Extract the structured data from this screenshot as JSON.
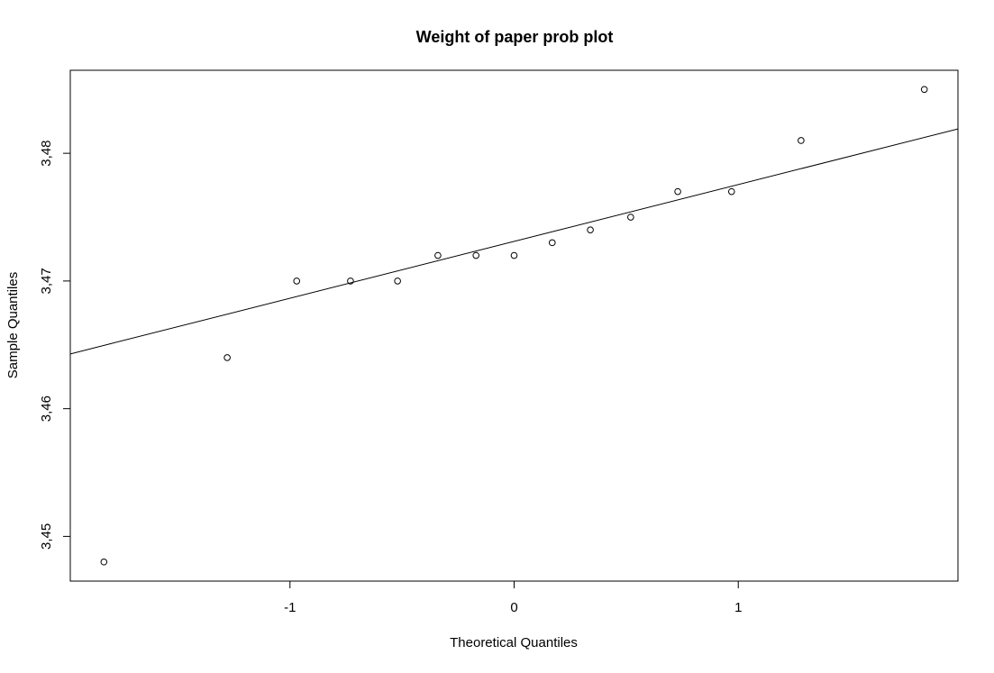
{
  "chart_data": {
    "type": "scatter",
    "title": "Weight of paper prob plot",
    "xlabel": "Theoretical Quantiles",
    "ylabel": "Sample Quantiles",
    "xlim": [
      -1.98,
      1.98
    ],
    "ylim": [
      3.4465,
      3.4865
    ],
    "x_ticks": [
      -1,
      0,
      1
    ],
    "x_tick_labels": [
      "-1",
      "0",
      "1"
    ],
    "y_ticks": [
      3.45,
      3.46,
      3.47,
      3.48
    ],
    "y_tick_labels": [
      "3,45",
      "3,46",
      "3,47",
      "3,48"
    ],
    "grid": false,
    "points": [
      {
        "x": -1.83,
        "y": 3.448
      },
      {
        "x": -1.28,
        "y": 3.464
      },
      {
        "x": -0.97,
        "y": 3.47
      },
      {
        "x": -0.73,
        "y": 3.47
      },
      {
        "x": -0.52,
        "y": 3.47
      },
      {
        "x": -0.34,
        "y": 3.472
      },
      {
        "x": -0.17,
        "y": 3.472
      },
      {
        "x": 0.0,
        "y": 3.472
      },
      {
        "x": 0.17,
        "y": 3.473
      },
      {
        "x": 0.34,
        "y": 3.474
      },
      {
        "x": 0.52,
        "y": 3.475
      },
      {
        "x": 0.73,
        "y": 3.477
      },
      {
        "x": 0.97,
        "y": 3.477
      },
      {
        "x": 1.28,
        "y": 3.481
      },
      {
        "x": 1.83,
        "y": 3.485
      }
    ],
    "reference_line": {
      "intercept": 3.4731,
      "slope": 0.00445
    },
    "point_style": "open-circle",
    "color": "#000000"
  }
}
